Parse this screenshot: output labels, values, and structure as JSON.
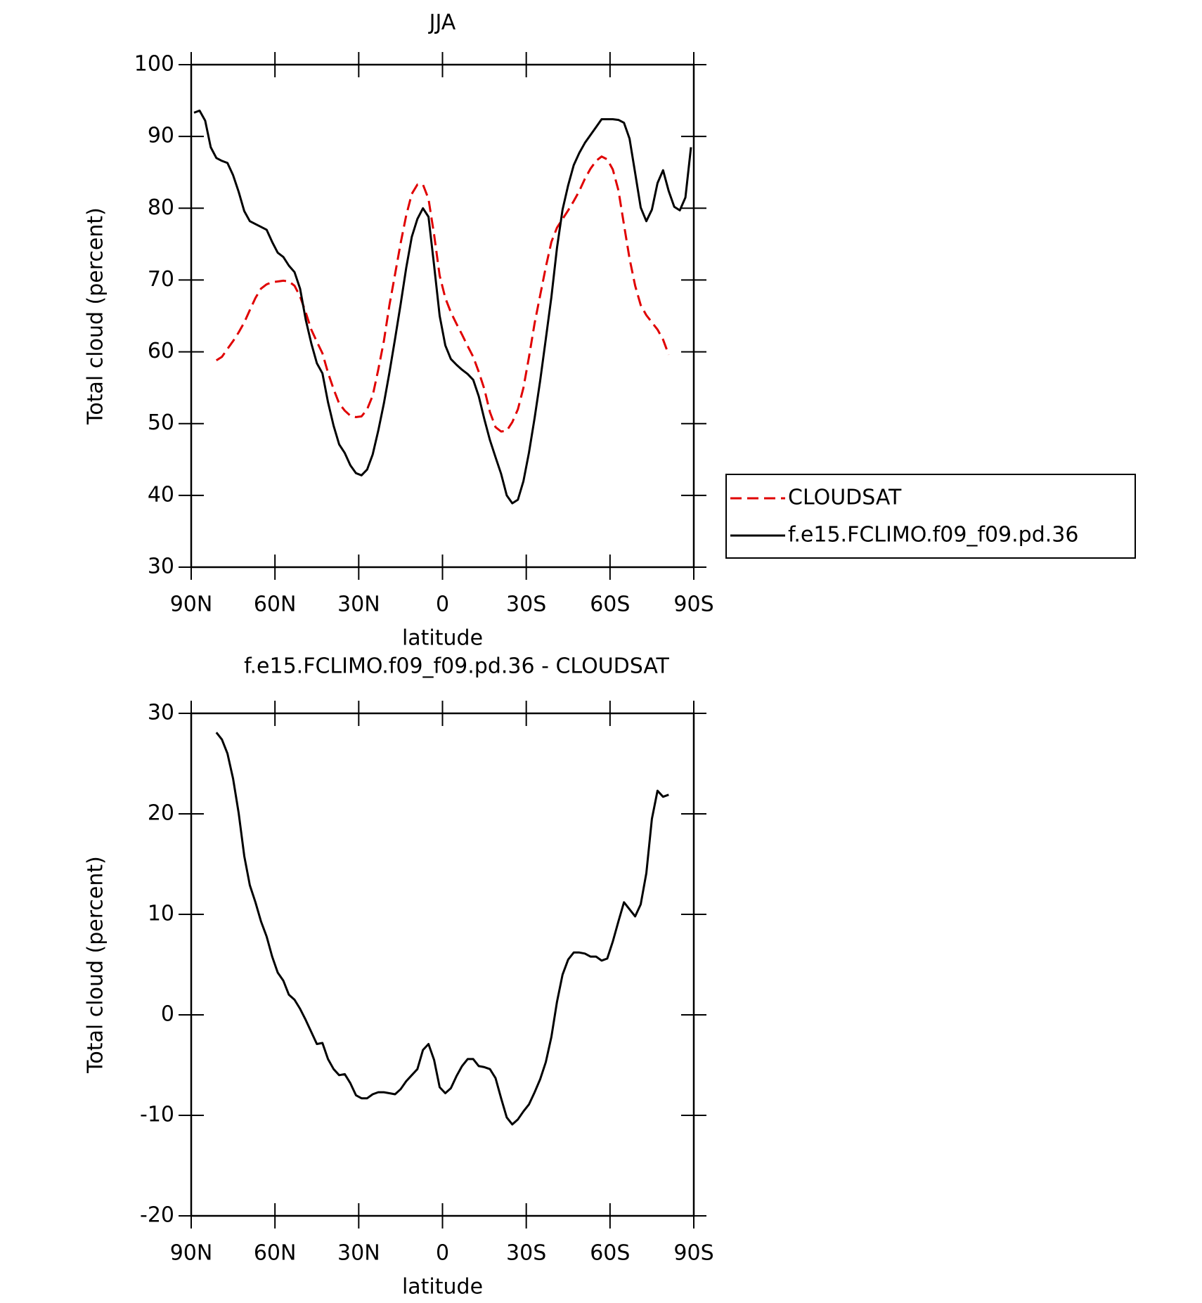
{
  "chart_data": [
    {
      "type": "line",
      "title": "JJA",
      "xlabel": "latitude",
      "ylabel": "Total cloud (percent)",
      "xlim": [
        90,
        -90
      ],
      "ylim": [
        30,
        100
      ],
      "xticks": [
        {
          "value": 90,
          "label": "90N"
        },
        {
          "value": 60,
          "label": "60N"
        },
        {
          "value": 30,
          "label": "30N"
        },
        0,
        {
          "value": -30,
          "label": "30S"
        },
        {
          "value": -60,
          "label": "60S"
        },
        {
          "value": -90,
          "label": "90S"
        }
      ],
      "yticks": [
        30,
        40,
        50,
        60,
        70,
        80,
        90,
        100
      ],
      "legend": "right",
      "x": [
        89,
        87,
        85,
        83,
        81,
        79,
        77,
        75,
        73,
        71,
        69,
        67,
        65,
        63,
        61,
        59,
        57,
        55,
        53,
        51,
        49,
        47,
        45,
        43,
        41,
        39,
        37,
        35,
        33,
        31,
        29,
        27,
        25,
        23,
        21,
        19,
        17,
        15,
        13,
        11,
        9,
        7,
        5,
        3,
        1,
        -1,
        -3,
        -5,
        -7,
        -9,
        -11,
        -13,
        -15,
        -17,
        -19,
        -21,
        -23,
        -25,
        -27,
        -29,
        -31,
        -33,
        -35,
        -37,
        -39,
        -41,
        -43,
        -45,
        -47,
        -49,
        -51,
        -53,
        -55,
        -57,
        -59,
        -61,
        -63,
        -65,
        -67,
        -69,
        -71,
        -73,
        -75,
        -77,
        -79,
        -81,
        -83,
        -85,
        -87,
        -89
      ],
      "series": [
        {
          "name": "CLOUDSAT",
          "color": "#e00000",
          "dashed": true,
          "values": [
            null,
            null,
            null,
            null,
            58.8,
            59.3,
            60.4,
            61.5,
            62.7,
            64.1,
            65.8,
            67.5,
            68.8,
            69.4,
            69.7,
            69.8,
            69.9,
            69.8,
            69.2,
            67.7,
            65.5,
            63.1,
            61.4,
            59.8,
            57.1,
            54.8,
            52.8,
            51.8,
            51.1,
            50.9,
            51,
            52,
            53.9,
            57.5,
            61.5,
            66.5,
            70.8,
            75.1,
            79,
            82,
            83.3,
            83.3,
            81.3,
            76.3,
            70.6,
            67.5,
            65.5,
            63.9,
            62.4,
            60.8,
            59.3,
            57.2,
            54.8,
            51.6,
            49.5,
            48.9,
            49,
            50.2,
            52,
            55,
            59.3,
            64,
            67.9,
            71.8,
            75.3,
            77.3,
            78.5,
            79.7,
            81,
            82.4,
            84.1,
            85.5,
            86.6,
            87.2,
            86.8,
            85.4,
            82.5,
            77.7,
            73,
            69.2,
            66.5,
            65.1,
            64.1,
            63.1,
            61.7,
            59.6,
            null,
            null,
            null,
            null
          ]
        },
        {
          "name": "f.e15.FCLIMO.f09_f09.pd.36",
          "color": "#000000",
          "dashed": false,
          "values": [
            93.3,
            93.6,
            92.2,
            88.5,
            87,
            86.6,
            86.3,
            84.6,
            82.3,
            79.6,
            78.2,
            77.8,
            77.4,
            77,
            75.3,
            73.8,
            73.2,
            72,
            71.1,
            68.8,
            64.5,
            61.2,
            58.4,
            57,
            53,
            49.7,
            47.1,
            45.9,
            44.2,
            43.1,
            42.8,
            43.6,
            45.7,
            49,
            52.8,
            57.1,
            61.8,
            66.6,
            71.7,
            76,
            78.5,
            80,
            78.8,
            72,
            65,
            60.9,
            59,
            58.2,
            57.5,
            56.9,
            56.1,
            53.8,
            50.6,
            47.7,
            45.3,
            43,
            40,
            38.9,
            39.4,
            42,
            46,
            50.8,
            56,
            61.8,
            67.6,
            74.5,
            79.8,
            83.2,
            86,
            87.7,
            89.1,
            90.2,
            91.3,
            92.4,
            92.4,
            92.4,
            92.3,
            91.9,
            89.7,
            84.9,
            80.1,
            78.2,
            79.8,
            83.5,
            85.3,
            82.4,
            80.2,
            79.7,
            81.5,
            88.5
          ]
        }
      ]
    },
    {
      "type": "line",
      "title": "f.e15.FCLIMO.f09_f09.pd.36 - CLOUDSAT",
      "xlabel": "latitude",
      "ylabel": "Total cloud (percent)",
      "xlim": [
        90,
        -90
      ],
      "ylim": [
        -20,
        30
      ],
      "xticks": [
        {
          "value": 90,
          "label": "90N"
        },
        {
          "value": 60,
          "label": "60N"
        },
        {
          "value": 30,
          "label": "30N"
        },
        0,
        {
          "value": -30,
          "label": "30S"
        },
        {
          "value": -60,
          "label": "60S"
        },
        {
          "value": -90,
          "label": "90S"
        }
      ],
      "yticks": [
        -20,
        -10,
        0,
        10,
        20,
        30
      ],
      "x": [
        81,
        79,
        77,
        75,
        73,
        71,
        69,
        67,
        65,
        63,
        61,
        59,
        57,
        55,
        53,
        51,
        49,
        47,
        45,
        43,
        41,
        39,
        37,
        35,
        33,
        31,
        29,
        27,
        25,
        23,
        21,
        19,
        17,
        15,
        13,
        11,
        9,
        7,
        5,
        3,
        1,
        -1,
        -3,
        -5,
        -7,
        -9,
        -11,
        -13,
        -15,
        -17,
        -19,
        -21,
        -23,
        -25,
        -27,
        -29,
        -31,
        -33,
        -35,
        -37,
        -39,
        -41,
        -43,
        -45,
        -47,
        -49,
        -51,
        -53,
        -55,
        -57,
        -59,
        -61,
        -63,
        -65,
        -67,
        -69,
        -71,
        -73,
        -75,
        -77,
        -79,
        -81
      ],
      "series": [
        {
          "color": "#000000",
          "dashed": false,
          "values": [
            28.1,
            27.4,
            26,
            23.5,
            20.1,
            15.8,
            12.9,
            11.2,
            9.3,
            7.8,
            5.8,
            4.2,
            3.4,
            2,
            1.5,
            0.6,
            -0.5,
            -1.7,
            -2.9,
            -2.8,
            -4.4,
            -5.4,
            -6,
            -5.9,
            -6.8,
            -8,
            -8.3,
            -8.3,
            -7.9,
            -7.7,
            -7.7,
            -7.8,
            -7.9,
            -7.4,
            -6.6,
            -6,
            -5.4,
            -3.5,
            -2.9,
            -4.5,
            -7.2,
            -7.8,
            -7.3,
            -6.1,
            -5.1,
            -4.4,
            -4.4,
            -5.1,
            -5.2,
            -5.4,
            -6.3,
            -8.3,
            -10.2,
            -10.9,
            -10.4,
            -9.6,
            -8.9,
            -7.7,
            -6.4,
            -4.7,
            -2.2,
            1.3,
            4,
            5.5,
            6.2,
            6.2,
            6.1,
            5.8,
            5.8,
            5.4,
            5.6,
            7.3,
            9.3,
            11.2,
            10.5,
            9.8,
            11,
            14.1,
            19.5,
            22.3,
            21.7,
            21.9
          ]
        }
      ]
    }
  ]
}
